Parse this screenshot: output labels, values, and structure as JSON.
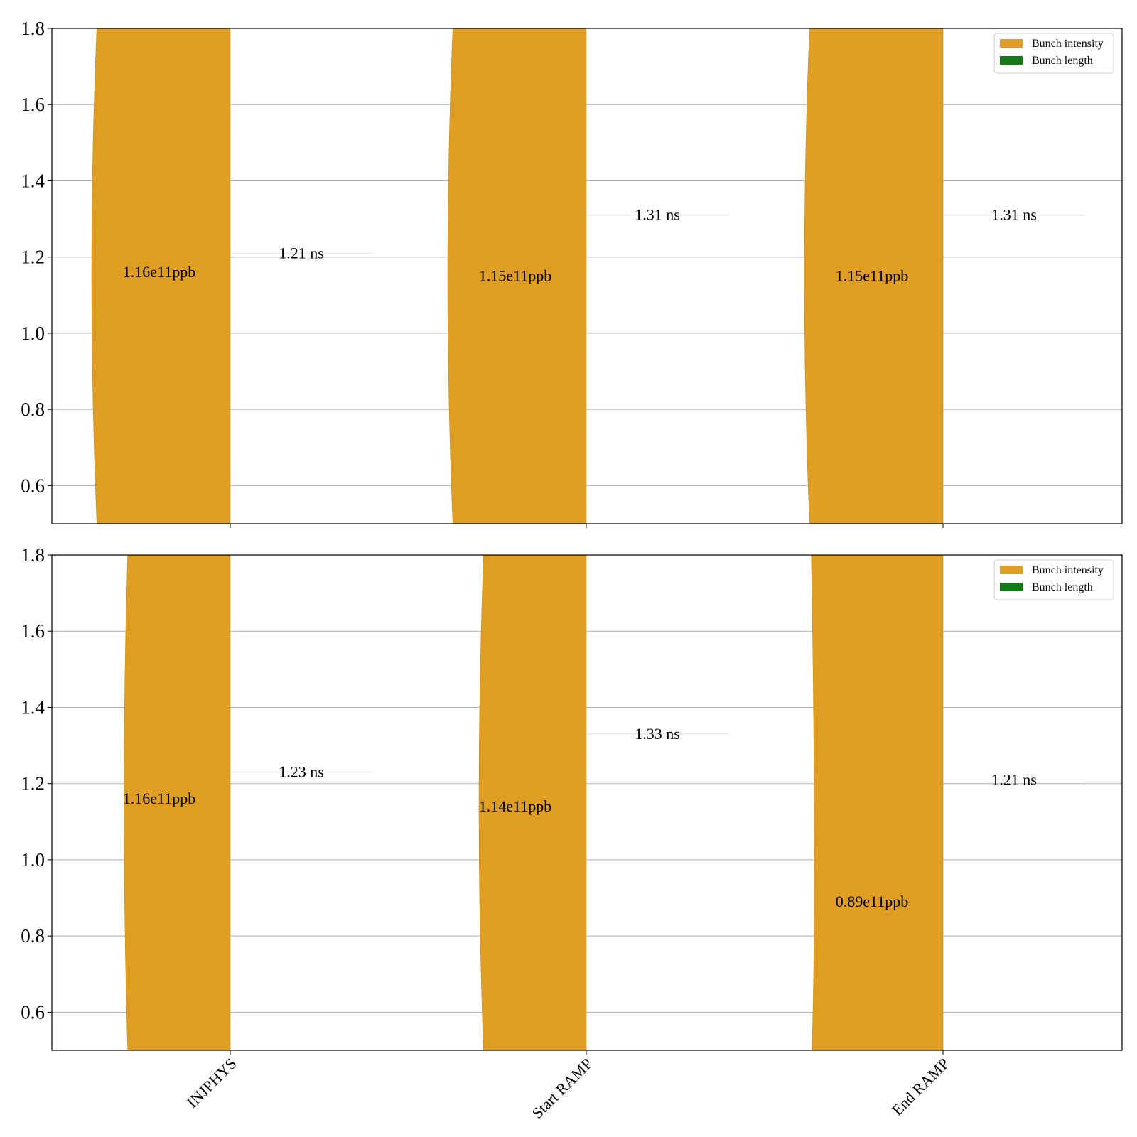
{
  "colors": {
    "intensity": "#DF9E22",
    "length": "#177817",
    "grid": "#b0b0b0",
    "axis": "#000000"
  },
  "chart_data": [
    {
      "type": "violin",
      "ylim": [
        0.5,
        1.8
      ],
      "yticks": [
        "0.6",
        "0.8",
        "1.0",
        "1.2",
        "1.4",
        "1.6",
        "1.8"
      ],
      "grid": true,
      "legend_position": "top-right",
      "legend": [
        "Bunch intensity",
        "Bunch length"
      ],
      "categories": [
        "INJPHYS",
        "Start RAMP",
        "End RAMP"
      ],
      "intensity_labels": [
        "1.16e11ppb",
        "1.15e11ppb",
        "1.15e11ppb"
      ],
      "intensity_values": [
        1.16,
        1.15,
        1.15
      ],
      "length_labels": [
        "1.21 ns",
        "1.31 ns",
        "1.31 ns"
      ],
      "length_values": [
        1.21,
        1.31,
        1.31
      ]
    },
    {
      "type": "violin",
      "ylim": [
        0.5,
        1.8
      ],
      "yticks": [
        "0.6",
        "0.8",
        "1.0",
        "1.2",
        "1.4",
        "1.6",
        "1.8"
      ],
      "grid": true,
      "legend_position": "top-right",
      "legend": [
        "Bunch intensity",
        "Bunch length"
      ],
      "categories": [
        "INJPHYS",
        "Start RAMP",
        "End RAMP"
      ],
      "intensity_labels": [
        "1.16e11ppb",
        "1.14e11ppb",
        "0.89e11ppb"
      ],
      "intensity_values": [
        1.16,
        1.14,
        0.89
      ],
      "length_labels": [
        "1.23 ns",
        "1.33 ns",
        "1.21 ns"
      ],
      "length_values": [
        1.23,
        1.33,
        1.21
      ]
    }
  ]
}
